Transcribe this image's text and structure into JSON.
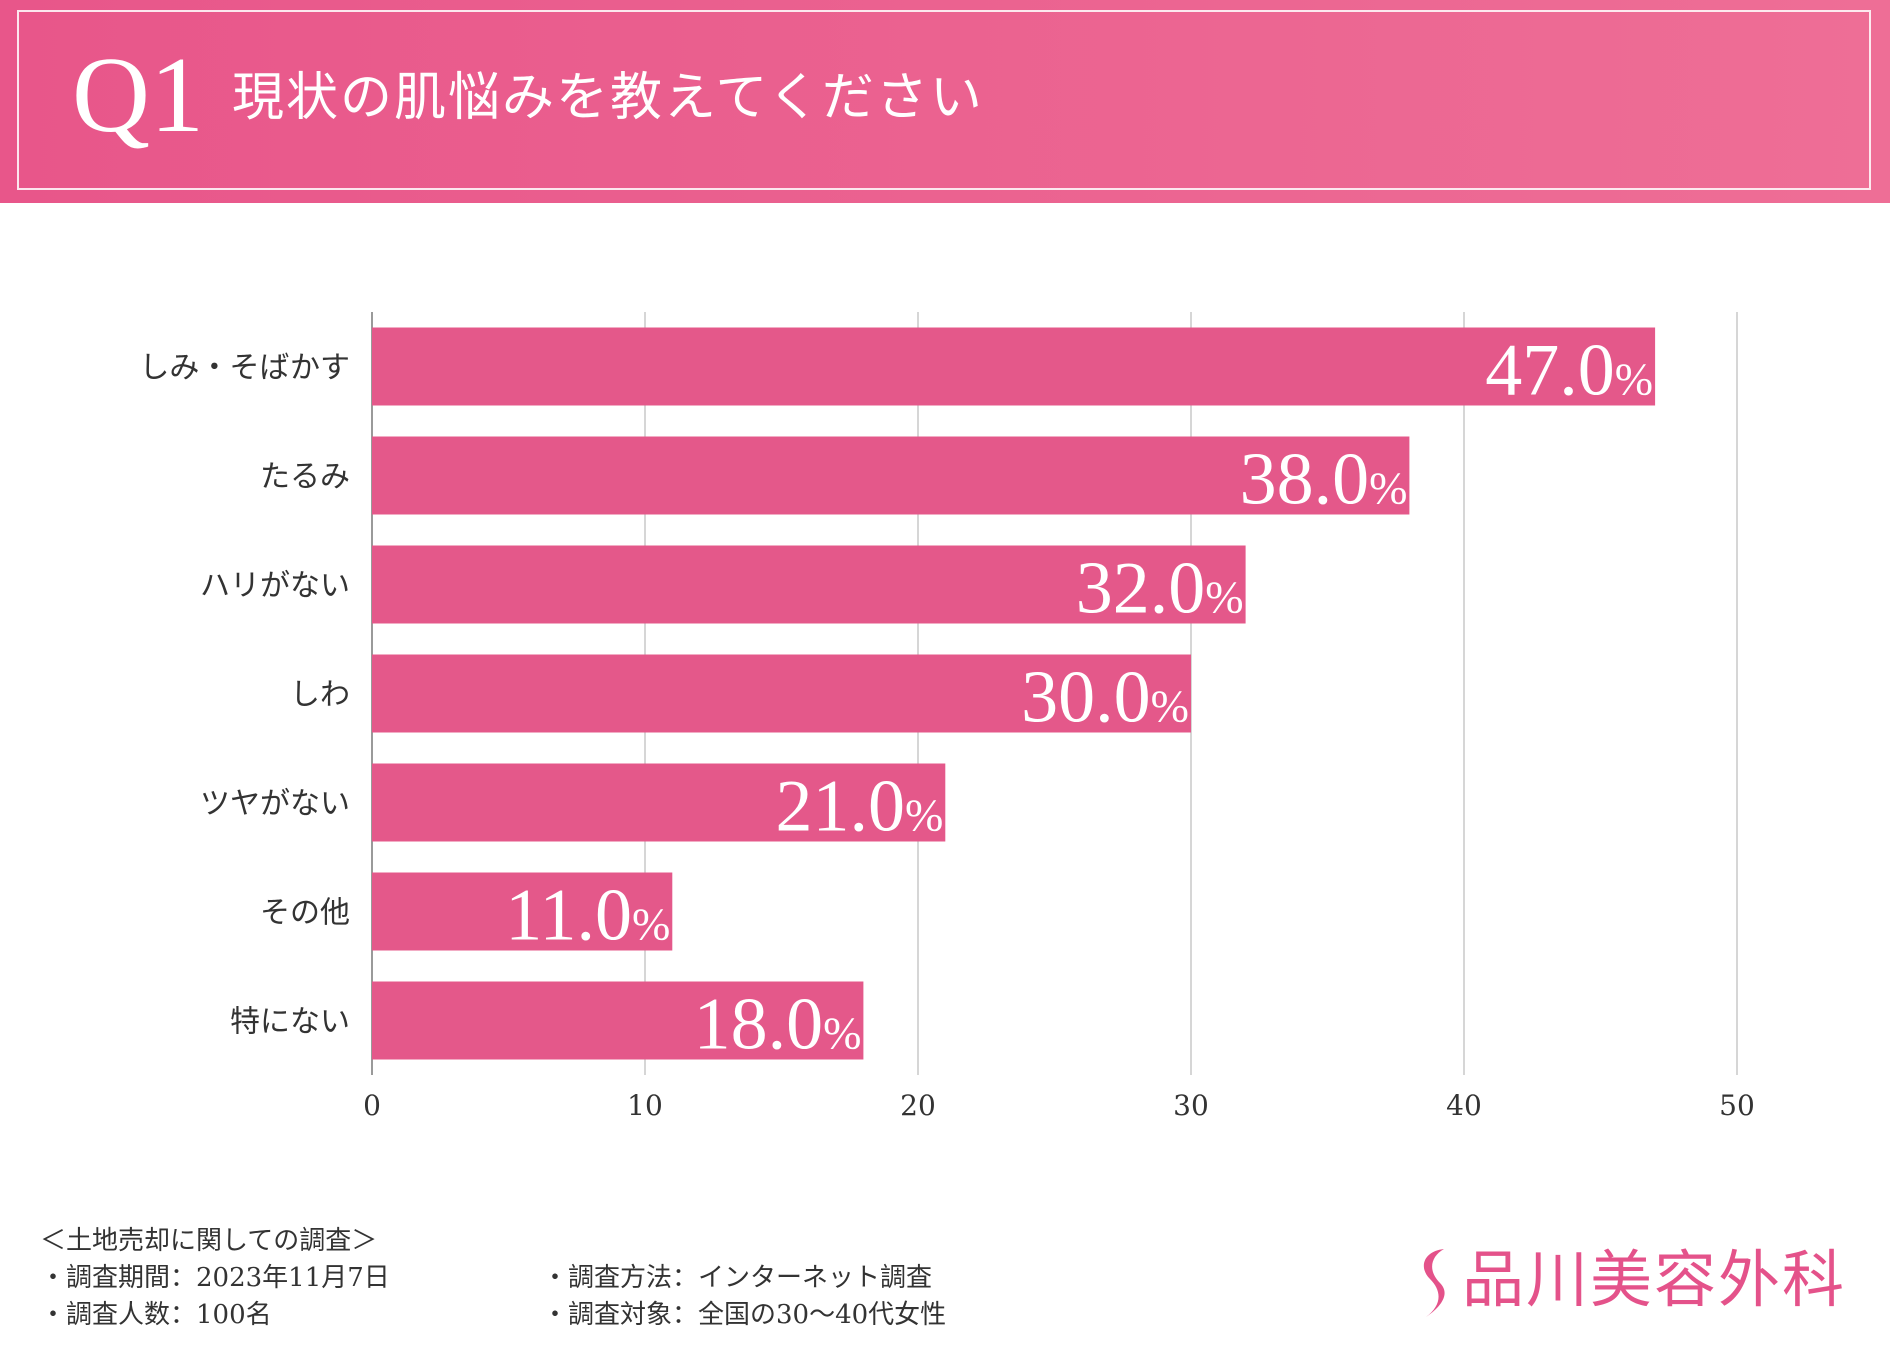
{
  "header": {
    "question_number": "Q1",
    "question_text": "現状の肌悩みを教えてください"
  },
  "colors": {
    "accent": "#e4588a",
    "bar": "#e4588a",
    "grid": "#c8c8c8",
    "text": "#333333",
    "logo": "#e4528a"
  },
  "chart_data": {
    "type": "bar",
    "orientation": "horizontal",
    "categories": [
      "しみ・そばかす",
      "たるみ",
      "ハリがない",
      "しわ",
      "ツヤがない",
      "その他",
      "特にない"
    ],
    "values": [
      47.0,
      38.0,
      32.0,
      30.0,
      21.0,
      11.0,
      18.0
    ],
    "value_labels": [
      "47.0",
      "38.0",
      "32.0",
      "30.0",
      "21.0",
      "11.0",
      "18.0"
    ],
    "value_unit": "%",
    "xlim": [
      0,
      50
    ],
    "xticks": [
      0,
      10,
      20,
      30,
      40,
      50
    ],
    "title": "",
    "xlabel": "",
    "ylabel": "",
    "grid": "vertical",
    "legend": "none"
  },
  "footer": {
    "survey_title": "＜土地売却に関しての調査＞",
    "period": "・調査期間：2023年11月7日",
    "respondents": "・調査人数：100名",
    "method": "・調査方法：インターネット調査",
    "target": "・調査対象：全国の30～40代女性"
  },
  "logo": {
    "icon": "s-swoosh-logo-icon",
    "text": "品川美容外科"
  }
}
